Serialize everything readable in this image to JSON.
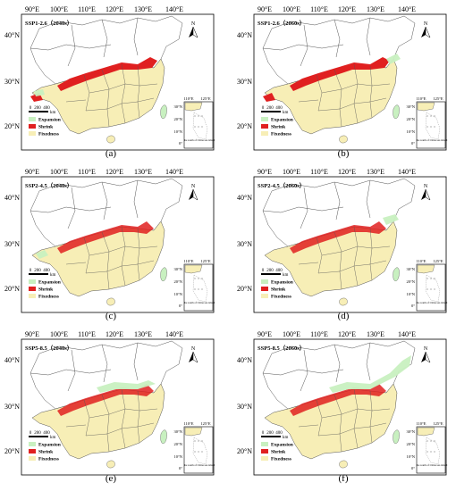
{
  "figure": {
    "lon_labels": [
      "90°E",
      "100°E",
      "110°E",
      "120°E",
      "130°E",
      "140°E"
    ],
    "lat_labels": [
      "40°N",
      "30°N",
      "20°N"
    ],
    "north_label": "N",
    "scale": {
      "ticks": [
        "0",
        "200",
        "400"
      ],
      "unit": "km"
    },
    "legend": [
      {
        "label": "Expansion",
        "color": "#c8f0c0"
      },
      {
        "label": "Shrink",
        "color": "#e02020"
      },
      {
        "label": "Fixedness",
        "color": "#f7eeb6"
      }
    ],
    "inset": {
      "lon_labels": [
        "110°E",
        "125°E"
      ],
      "lat_labels": [
        "30°N",
        "20°N",
        "10°N",
        "0°"
      ],
      "note": "the south of China sea island"
    },
    "colors": {
      "expansion": "#c8f0c0",
      "shrink": "#e02020",
      "fixedness": "#f7eeb6",
      "outline": "#555555"
    }
  },
  "panels": [
    {
      "title": "SSP1-2.6（2040s）",
      "caption": "(a)"
    },
    {
      "title": "SSP1-2.6（2060s）",
      "caption": "(b)"
    },
    {
      "title": "SSP2-4.5（2040s）",
      "caption": "(c)"
    },
    {
      "title": "SSP2-4.5（2060s）",
      "caption": "(d)"
    },
    {
      "title": "SSP5-8.5（2040s）",
      "caption": "(e)"
    },
    {
      "title": "SSP5-8.5（2060s）",
      "caption": "(f)"
    }
  ]
}
